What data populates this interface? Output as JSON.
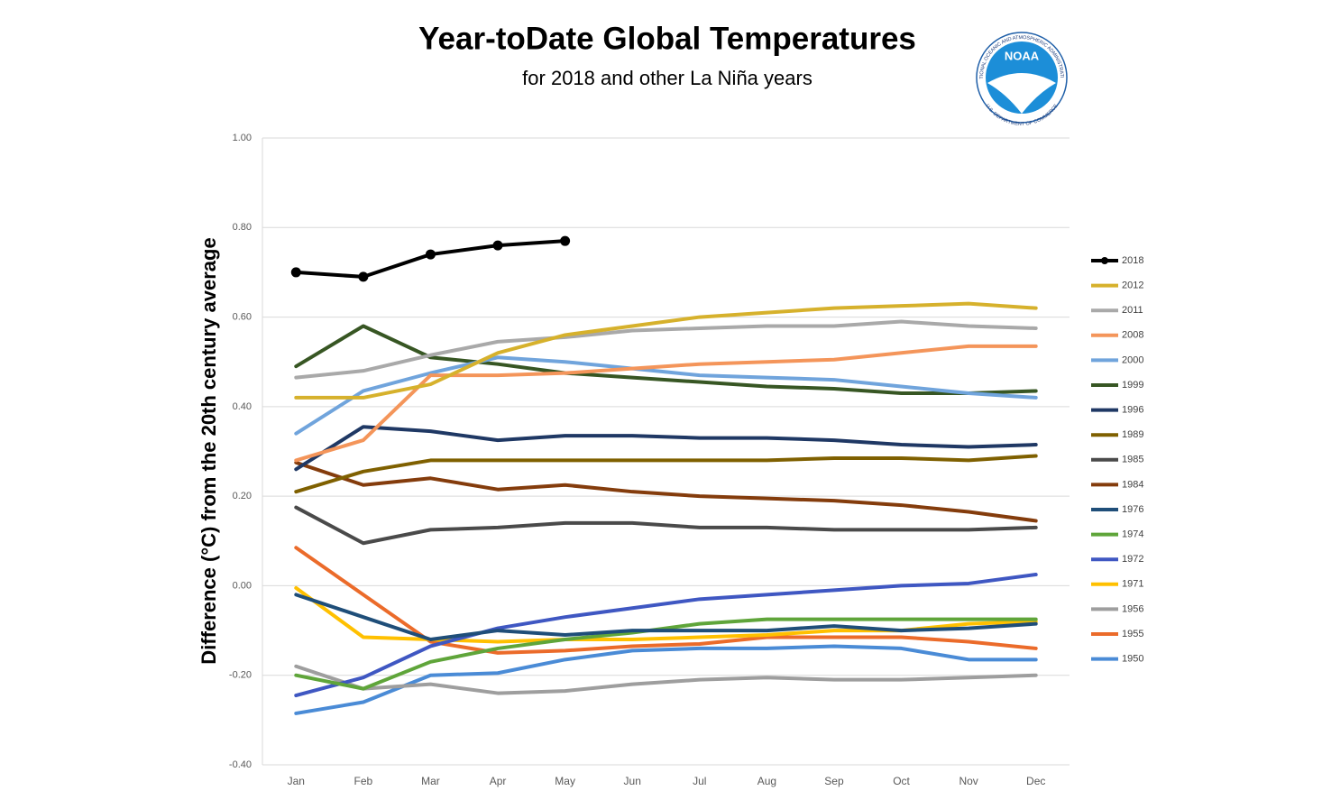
{
  "chart_data": {
    "type": "line",
    "title": "Year-toDate Global Temperatures",
    "subtitle": "for 2018 and other La Niña years",
    "y_label": "Difference (°C) from the 20th century average",
    "logo": {
      "text": "NOAA",
      "ring_top": "NATIONAL OCEANIC AND ATMOSPHERIC ADMINISTRATION",
      "ring_bottom": "U.S. DEPARTMENT OF COMMERCE"
    },
    "categories": [
      "Jan",
      "Feb",
      "Mar",
      "Apr",
      "May",
      "Jun",
      "Jul",
      "Aug",
      "Sep",
      "Oct",
      "Nov",
      "Dec"
    ],
    "ylim": [
      -0.4,
      1.0
    ],
    "yticks": [
      {
        "value": -0.4,
        "label": "-0.40"
      },
      {
        "value": -0.2,
        "label": "-0.20"
      },
      {
        "value": 0,
        "label": "0.00"
      },
      {
        "value": 0.2,
        "label": "0.20"
      },
      {
        "value": 0.4,
        "label": "0.40"
      },
      {
        "value": 0.6,
        "label": "0.60"
      },
      {
        "value": 0.8,
        "label": "0.80"
      },
      {
        "value": 1.0,
        "label": "1.00"
      }
    ],
    "grid": true,
    "legend": "right",
    "series": [
      {
        "name": "2018",
        "color": "#000000",
        "markers": true,
        "values": [
          0.7,
          0.69,
          0.74,
          0.76,
          0.77,
          null,
          null,
          null,
          null,
          null,
          null,
          null
        ]
      },
      {
        "name": "2012",
        "color": "#d6b12c",
        "values": [
          0.42,
          0.42,
          0.45,
          0.52,
          0.56,
          0.58,
          0.6,
          0.61,
          0.62,
          0.625,
          0.63,
          0.62
        ]
      },
      {
        "name": "2011",
        "color": "#a9a9a9",
        "values": [
          0.465,
          0.48,
          0.515,
          0.545,
          0.555,
          0.57,
          0.575,
          0.58,
          0.58,
          0.59,
          0.58,
          0.575
        ]
      },
      {
        "name": "2008",
        "color": "#f4955a",
        "values": [
          0.28,
          0.325,
          0.47,
          0.47,
          0.475,
          0.485,
          0.495,
          0.5,
          0.505,
          0.52,
          0.535,
          0.535
        ]
      },
      {
        "name": "2000",
        "color": "#70a4dc",
        "values": [
          0.34,
          0.435,
          0.475,
          0.51,
          0.5,
          0.485,
          0.47,
          0.465,
          0.46,
          0.445,
          0.43,
          0.42
        ]
      },
      {
        "name": "1999",
        "color": "#375623",
        "values": [
          0.49,
          0.58,
          0.51,
          0.495,
          0.475,
          0.465,
          0.455,
          0.445,
          0.44,
          0.43,
          0.43,
          0.435
        ]
      },
      {
        "name": "1996",
        "color": "#1f3864",
        "values": [
          0.26,
          0.355,
          0.345,
          0.325,
          0.335,
          0.335,
          0.33,
          0.33,
          0.325,
          0.315,
          0.31,
          0.315
        ]
      },
      {
        "name": "1989",
        "color": "#7f6000",
        "values": [
          0.21,
          0.255,
          0.28,
          0.28,
          0.28,
          0.28,
          0.28,
          0.28,
          0.285,
          0.285,
          0.28,
          0.29
        ]
      },
      {
        "name": "1985",
        "color": "#4a4a4a",
        "values": [
          0.175,
          0.095,
          0.125,
          0.13,
          0.14,
          0.14,
          0.13,
          0.13,
          0.125,
          0.125,
          0.125,
          0.13
        ]
      },
      {
        "name": "1984",
        "color": "#843c0c",
        "values": [
          0.275,
          0.225,
          0.24,
          0.215,
          0.225,
          0.21,
          0.2,
          0.195,
          0.19,
          0.18,
          0.165,
          0.145
        ]
      },
      {
        "name": "1976",
        "color": "#1f4e79",
        "values": [
          -0.02,
          -0.07,
          -0.12,
          -0.1,
          -0.11,
          -0.1,
          -0.1,
          -0.1,
          -0.09,
          -0.1,
          -0.095,
          -0.085
        ]
      },
      {
        "name": "1974",
        "color": "#5fa53a",
        "values": [
          -0.2,
          -0.23,
          -0.17,
          -0.14,
          -0.12,
          -0.105,
          -0.085,
          -0.075,
          -0.075,
          -0.075,
          -0.075,
          -0.075
        ]
      },
      {
        "name": "1972",
        "color": "#3f57c2",
        "values": [
          -0.245,
          -0.205,
          -0.135,
          -0.095,
          -0.07,
          -0.05,
          -0.03,
          -0.02,
          -0.01,
          0.0,
          0.005,
          0.025
        ]
      },
      {
        "name": "1971",
        "color": "#ffc000",
        "values": [
          -0.005,
          -0.115,
          -0.12,
          -0.125,
          -0.12,
          -0.12,
          -0.115,
          -0.11,
          -0.1,
          -0.1,
          -0.085,
          -0.08
        ]
      },
      {
        "name": "1956",
        "color": "#9e9e9e",
        "values": [
          -0.18,
          -0.23,
          -0.22,
          -0.24,
          -0.235,
          -0.22,
          -0.21,
          -0.205,
          -0.21,
          -0.21,
          -0.205,
          -0.2
        ]
      },
      {
        "name": "1955",
        "color": "#eb6b2a",
        "values": [
          0.085,
          -0.02,
          -0.125,
          -0.15,
          -0.145,
          -0.135,
          -0.13,
          -0.115,
          -0.115,
          -0.115,
          -0.125,
          -0.14
        ]
      },
      {
        "name": "1950",
        "color": "#4a8bd6",
        "values": [
          -0.285,
          -0.26,
          -0.2,
          -0.195,
          -0.165,
          -0.145,
          -0.14,
          -0.14,
          -0.135,
          -0.14,
          -0.165,
          -0.165
        ]
      }
    ]
  }
}
